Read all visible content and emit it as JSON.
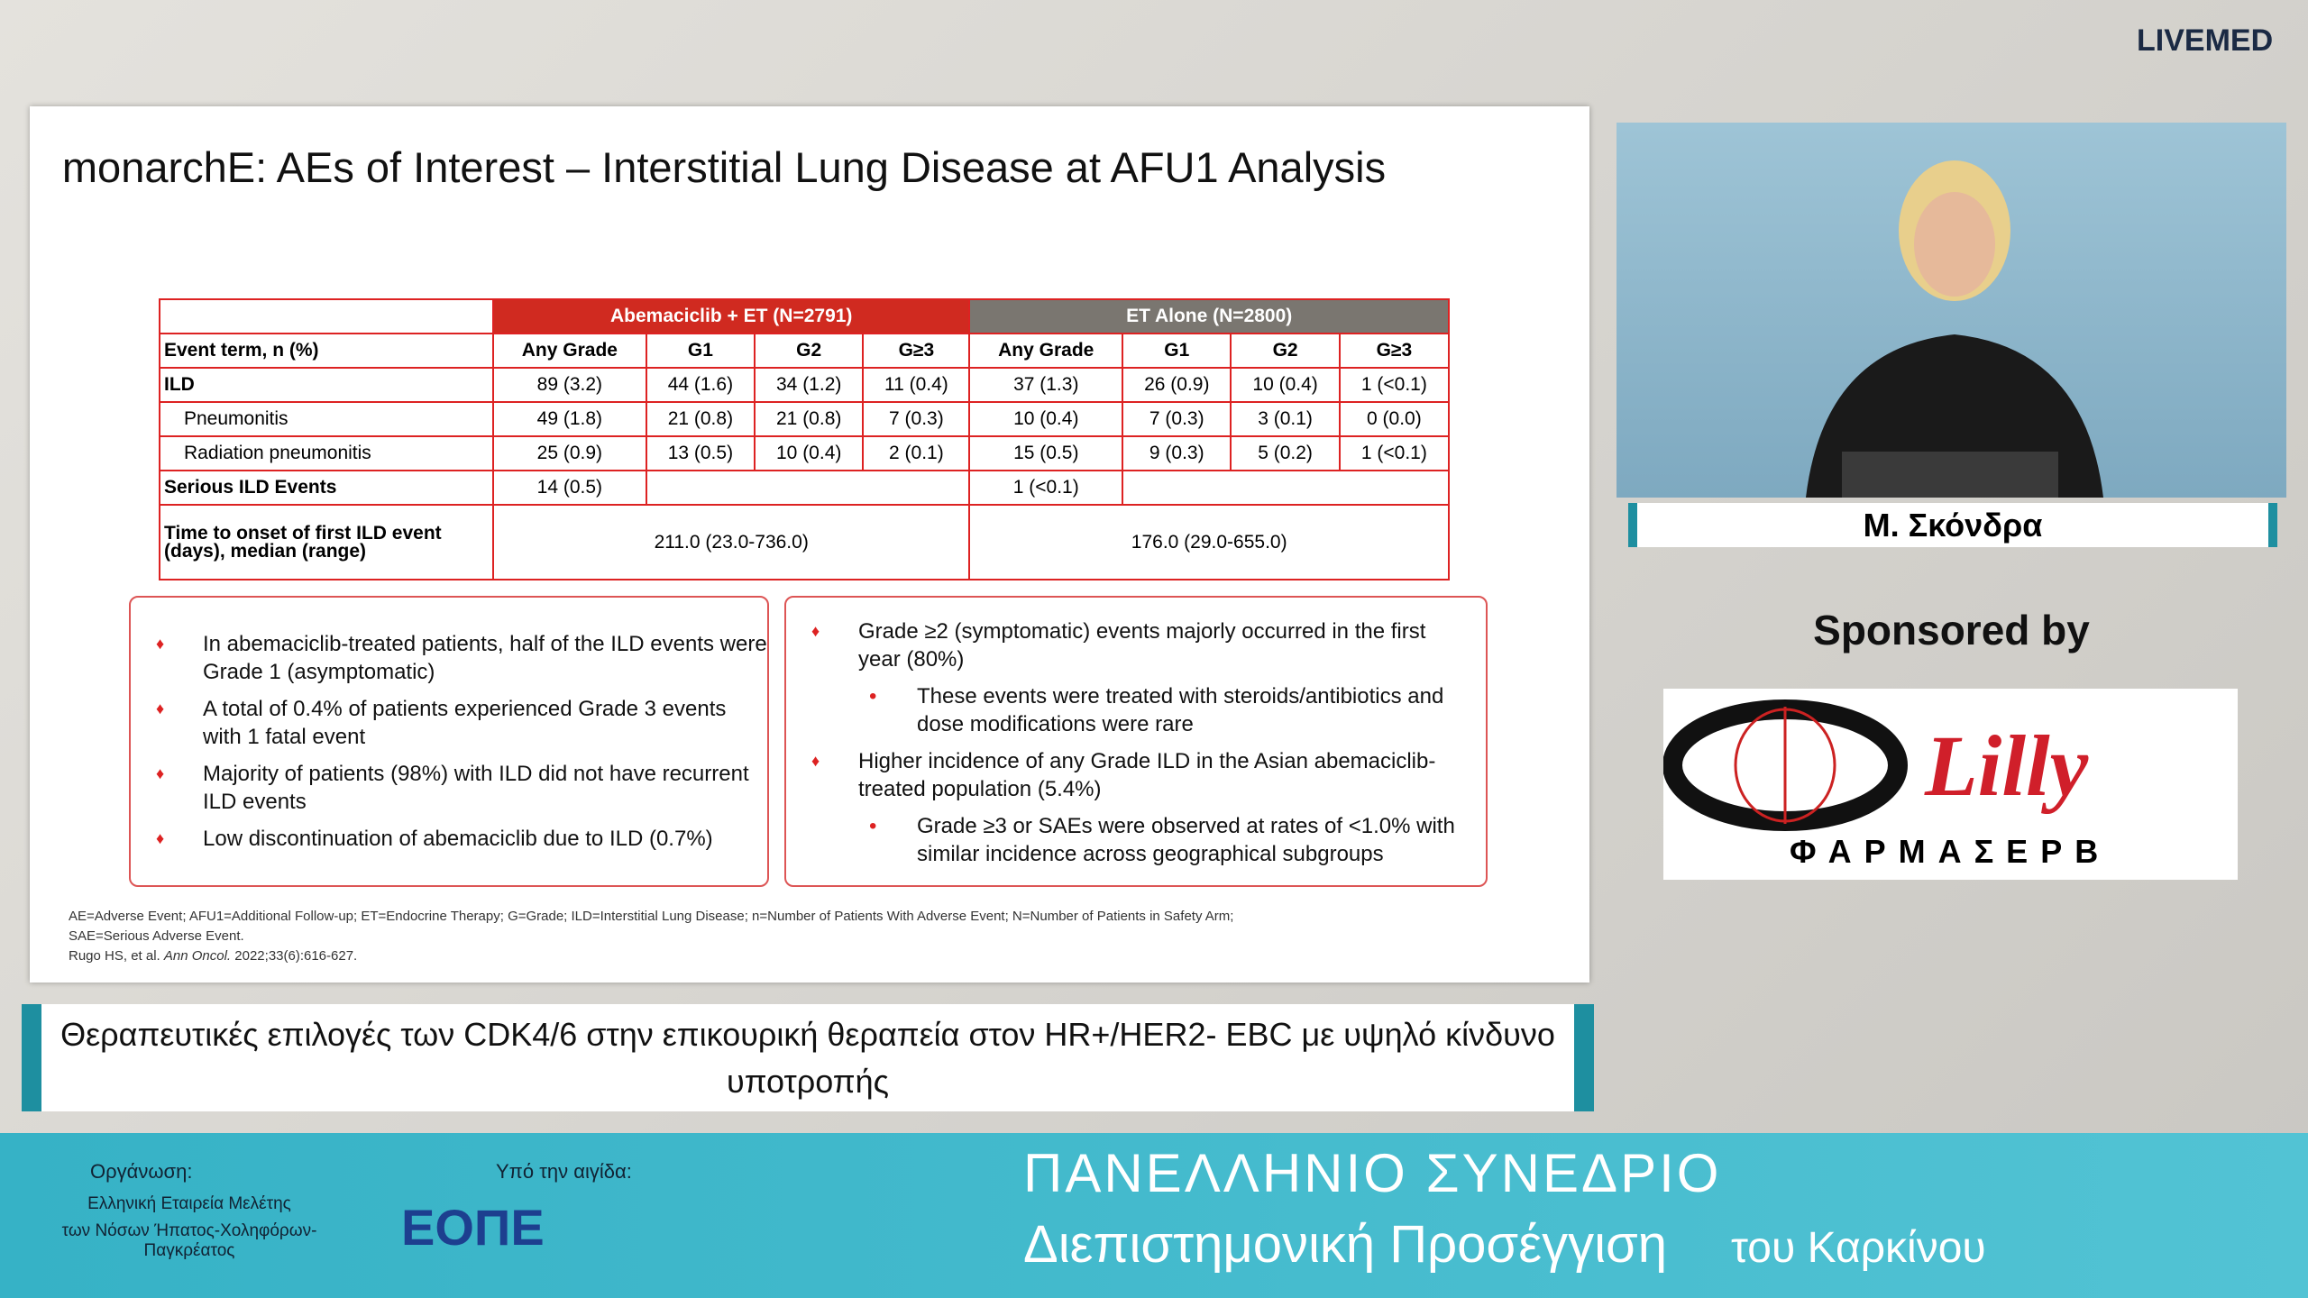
{
  "brand": "LIVEMED",
  "slide": {
    "title": "monarchE: AEs of Interest – Interstitial Lung Disease at AFU1 Analysis",
    "table": {
      "groups": [
        "Abemaciclib + ET (N=2791)",
        "ET Alone (N=2800)"
      ],
      "columns": [
        "Event term, n (%)",
        "Any Grade",
        "G1",
        "G2",
        "G≥3",
        "Any Grade",
        "G1",
        "G2",
        "G≥3"
      ],
      "rows": [
        [
          "ILD",
          "89 (3.2)",
          "44 (1.6)",
          "34 (1.2)",
          "11 (0.4)",
          "37 (1.3)",
          "26 (0.9)",
          "10 (0.4)",
          "1 (<0.1)"
        ],
        [
          "Pneumonitis",
          "49 (1.8)",
          "21 (0.8)",
          "21 (0.8)",
          "7 (0.3)",
          "10 (0.4)",
          "7 (0.3)",
          "3 (0.1)",
          "0 (0.0)"
        ],
        [
          "Radiation pneumonitis",
          "25 (0.9)",
          "13 (0.5)",
          "10 (0.4)",
          "2 (0.1)",
          "15 (0.5)",
          "9 (0.3)",
          "5 (0.2)",
          "1 (<0.1)"
        ]
      ],
      "serious": [
        "Serious ILD Events",
        "14 (0.5)",
        "1 (<0.1)"
      ],
      "onset": [
        "Time to onset of first ILD event (days), median (range)",
        "211.0 (23.0-736.0)",
        "176.0 (29.0-655.0)"
      ]
    },
    "left_bullets": [
      "In abemaciclib-treated patients, half of the ILD events were Grade 1 (asymptomatic)",
      "A total of 0.4% of patients experienced Grade 3 events with 1 fatal event",
      "Majority of patients (98%) with ILD did not have recurrent ILD events",
      "Low discontinuation of abemaciclib due to ILD (0.7%)"
    ],
    "right_bullets": [
      {
        "text": "Grade ≥2 (symptomatic) events majorly occurred in the first year (80%)",
        "sub": "These events were treated with steroids/antibiotics and dose modifications were rare"
      },
      {
        "text": "Higher incidence of any Grade ILD in the Asian abemaciclib-treated population (5.4%)",
        "sub": "Grade ≥3 or SAEs were observed at rates of <1.0% with similar incidence across geographical subgroups"
      }
    ],
    "footnotes": [
      "AE=Adverse Event; AFU1=Additional Follow-up; ET=Endocrine Therapy; G=Grade; ILD=Interstitial Lung Disease; n=Number of Patients With Adverse Event; N=Number of Patients in Safety Arm;",
      "SAE=Serious Adverse Event."
    ],
    "reference": {
      "authors": "Rugo HS, et al.",
      "journal": "Ann Oncol.",
      "citation": "2022;33(6):616-627."
    }
  },
  "speaker": "Μ. Σκόνδρα",
  "sponsor": {
    "label": "Sponsored by",
    "logo1": "ΦΑΡΜΑΣΕΡΒ",
    "logo2": "Lilly"
  },
  "caption": "Θεραπευτικές επιλογές των CDK4/6 στην επικουρική θεραπεία στον HR+/HER2- EBC με υψηλό κίνδυνο υποτροπής",
  "footer": {
    "organizer_label": "Οργάνωση:",
    "organizer": [
      "Ελληνική Εταιρεία Μελέτης",
      "των Νόσων Ήπατος-Χοληφόρων-Παγκρέατος"
    ],
    "auspices_label": "Υπό την αιγίδα:",
    "auspices": "ΕΟΠΕ",
    "event": [
      "ΠΑΝΕΛΛΗΝΙΟ ΣΥΝΕΔΡΙΟ",
      "Διεπιστημονική Προσέγγιση",
      "του Καρκίνου"
    ]
  }
}
